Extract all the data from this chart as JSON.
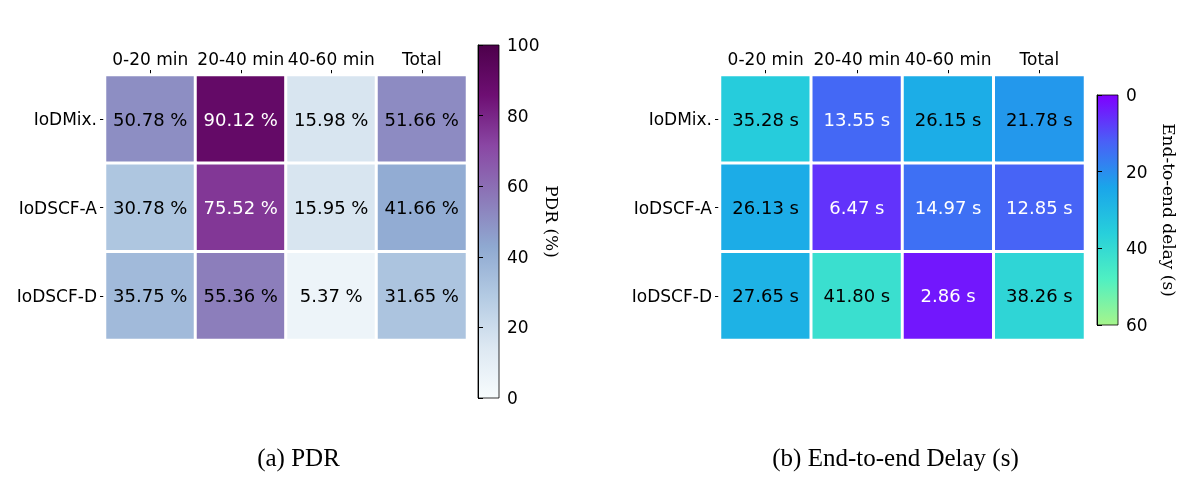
{
  "chart_data": [
    {
      "type": "heatmap",
      "title": "(a) PDR",
      "categories": [
        "0-20 min",
        "20-40 min",
        "40-60 min",
        "Total"
      ],
      "y_categories": [
        "IoDMix.",
        "IoDSCF-A",
        "IoDSCF-D"
      ],
      "cells": [
        [
          50.78,
          90.12,
          15.98,
          51.66
        ],
        [
          30.78,
          75.52,
          15.95,
          41.66
        ],
        [
          35.75,
          55.36,
          5.37,
          31.65
        ]
      ],
      "cell_labels": [
        [
          "50.78 %",
          "90.12 %",
          "15.98 %",
          "51.66 %"
        ],
        [
          "30.78 %",
          "75.52 %",
          "15.95 %",
          "41.66 %"
        ],
        [
          "35.75 %",
          "55.36 %",
          "5.37 %",
          "31.65 %"
        ]
      ],
      "clabel": "PDR (%)",
      "clim": [
        0,
        100
      ],
      "cticks": [
        0,
        20,
        40,
        60,
        80,
        100
      ]
    },
    {
      "type": "heatmap",
      "title": "(b) End-to-end Delay (s)",
      "categories": [
        "0-20 min",
        "20-40 min",
        "40-60 min",
        "Total"
      ],
      "y_categories": [
        "IoDMix.",
        "IoDSCF-A",
        "IoDSCF-D"
      ],
      "cells": [
        [
          35.28,
          13.55,
          26.15,
          21.78
        ],
        [
          26.13,
          6.47,
          14.97,
          12.85
        ],
        [
          27.65,
          41.8,
          2.86,
          38.26
        ]
      ],
      "cell_labels": [
        [
          "35.28 s",
          "13.55 s",
          "26.15 s",
          "21.78 s"
        ],
        [
          "26.13 s",
          "6.47 s",
          "14.97 s",
          "12.85 s"
        ],
        [
          "27.65 s",
          "41.80 s",
          "2.86 s",
          "38.26 s"
        ]
      ],
      "clabel": "End-to-end delay (s)",
      "clim": [
        60,
        0
      ],
      "cticks": [
        0,
        20,
        40,
        60
      ]
    }
  ]
}
